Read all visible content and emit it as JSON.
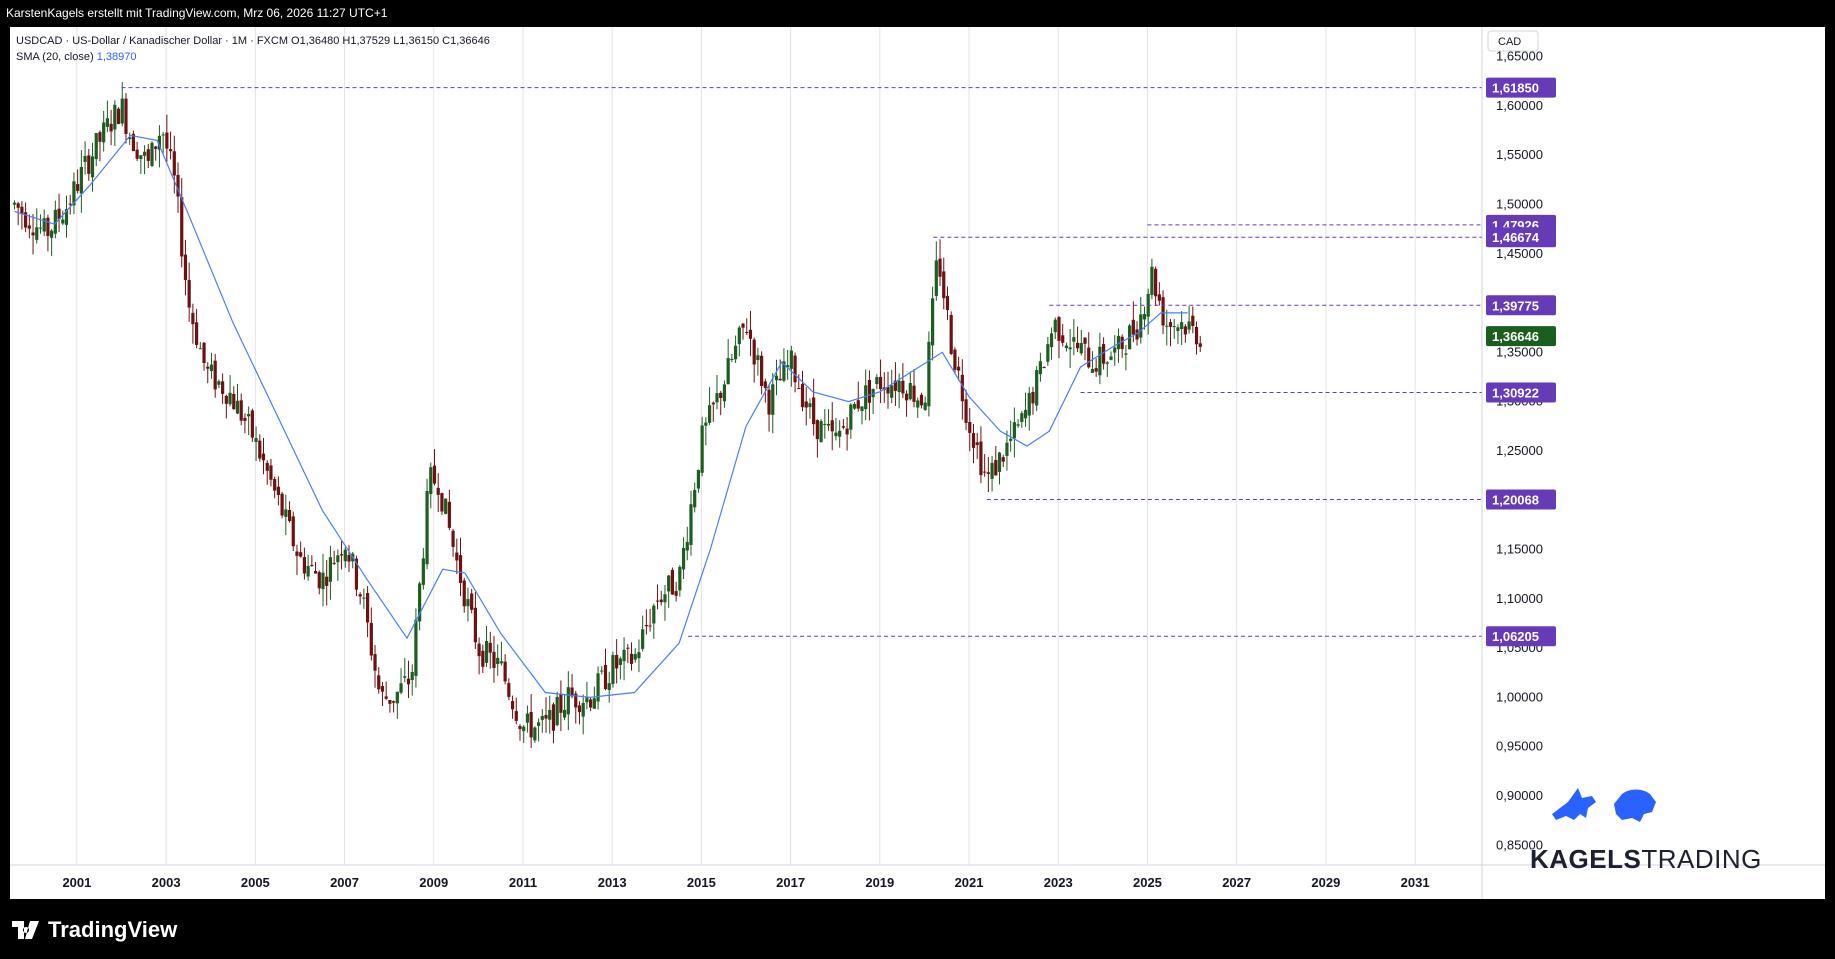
{
  "header": {
    "text": "KarstenKagels erstellt mit TradingView.com, Mrz 06, 2026 11:27 UTC+1"
  },
  "legend": {
    "symbol_line": "USDCAD · US-Dollar / Kanadischer Dollar · 1M · FXCM  O1,36480  H1,37529  L1,36150  C1,36646",
    "sma_label": "SMA (20, close)",
    "sma_value": "1,38970"
  },
  "footer": {
    "brand": "TradingView"
  },
  "watermark": {
    "brand_bold": "KAGELS",
    "brand_light": "TRADING"
  },
  "colors": {
    "up": "#1b5e20",
    "down": "#6d1111",
    "sma": "#4a7ff0",
    "level": "#673ab7",
    "last": "#1b5e20"
  },
  "chart_data": {
    "type": "candlestick",
    "currency_label": "CAD",
    "x_ticks": [
      "2001",
      "2003",
      "2005",
      "2007",
      "2009",
      "2011",
      "2013",
      "2015",
      "2017",
      "2019",
      "2021",
      "2023",
      "2025",
      "2027",
      "2029",
      "2031"
    ],
    "y_ticks": [
      "1,65000",
      "1,60000",
      "1,55000",
      "1,50000",
      "1,45000",
      "1,40000",
      "1,35000",
      "1,30000",
      "1,25000",
      "1,20000",
      "1,15000",
      "1,10000",
      "1,05000",
      "1,00000",
      "0,95000",
      "0,90000",
      "0,85000"
    ],
    "ylim": [
      0.83,
      1.68
    ],
    "xlim": [
      1999.5,
      2032.5
    ],
    "levels": [
      {
        "label": "1,61850",
        "value": 1.6185,
        "start": 2002.0
      },
      {
        "label": "1,47926",
        "value": 1.47926,
        "start": 2025.0
      },
      {
        "label": "1,46674",
        "value": 1.46674,
        "start": 2020.2
      },
      {
        "label": "1,39775",
        "value": 1.39775,
        "start": 2022.8
      },
      {
        "label": "1,30922",
        "value": 1.30922,
        "start": 2023.5
      },
      {
        "label": "1,20068",
        "value": 1.20068,
        "start": 2021.4
      },
      {
        "label": "1,06205",
        "value": 1.06205,
        "start": 2014.7
      }
    ],
    "last_price": {
      "label": "1,36646",
      "value": 1.36646
    },
    "sma_series": {
      "x": [
        1999.6,
        2000.5,
        2001.3,
        2002.2,
        2002.8,
        2003.5,
        2004.5,
        2005.5,
        2006.5,
        2007.5,
        2008.4,
        2009.2,
        2009.7,
        2010.5,
        2011.5,
        2012.5,
        2013.5,
        2014.5,
        2015.2,
        2016.0,
        2016.8,
        2017.5,
        2018.3,
        2019.0,
        2019.7,
        2020.4,
        2021.0,
        2021.7,
        2022.3,
        2022.8,
        2023.5,
        2024.2,
        2024.8,
        2025.3,
        2025.9
      ],
      "y": [
        1.493,
        1.48,
        1.52,
        1.57,
        1.565,
        1.49,
        1.38,
        1.285,
        1.19,
        1.12,
        1.06,
        1.13,
        1.126,
        1.065,
        1.005,
        1.0,
        1.005,
        1.055,
        1.15,
        1.275,
        1.34,
        1.31,
        1.3,
        1.31,
        1.33,
        1.35,
        1.305,
        1.27,
        1.255,
        1.27,
        1.335,
        1.355,
        1.37,
        1.39,
        1.39
      ]
    },
    "price_path": {
      "x": [
        1999.6,
        2000.3,
        2000.8,
        2001.2,
        2001.7,
        2002.0,
        2002.2,
        2002.6,
        2002.9,
        2003.2,
        2003.5,
        2003.9,
        2004.4,
        2004.9,
        2005.5,
        2006.0,
        2006.5,
        2007.0,
        2007.4,
        2007.8,
        2008.1,
        2008.5,
        2008.9,
        2009.1,
        2009.5,
        2010.0,
        2010.5,
        2011.0,
        2011.5,
        2012.0,
        2012.5,
        2013.0,
        2013.5,
        2014.0,
        2014.5,
        2015.0,
        2015.5,
        2016.0,
        2016.5,
        2017.0,
        2017.5,
        2018.0,
        2018.5,
        2019.0,
        2019.5,
        2020.0,
        2020.3,
        2020.6,
        2021.0,
        2021.4,
        2021.8,
        2022.2,
        2022.6,
        2022.9,
        2023.3,
        2023.8,
        2024.3,
        2024.8,
        2025.1,
        2025.4,
        2025.8,
        2026.2
      ],
      "y": [
        1.5,
        1.47,
        1.5,
        1.54,
        1.58,
        1.6,
        1.57,
        1.54,
        1.58,
        1.52,
        1.4,
        1.33,
        1.31,
        1.27,
        1.2,
        1.14,
        1.12,
        1.16,
        1.1,
        1.0,
        1.0,
        1.02,
        1.22,
        1.22,
        1.14,
        1.05,
        1.03,
        0.97,
        0.97,
        1.0,
        1.0,
        1.03,
        1.04,
        1.1,
        1.12,
        1.26,
        1.32,
        1.38,
        1.3,
        1.34,
        1.28,
        1.26,
        1.3,
        1.32,
        1.32,
        1.3,
        1.45,
        1.36,
        1.28,
        1.22,
        1.25,
        1.28,
        1.33,
        1.38,
        1.36,
        1.34,
        1.35,
        1.38,
        1.43,
        1.38,
        1.38,
        1.366
      ]
    }
  }
}
